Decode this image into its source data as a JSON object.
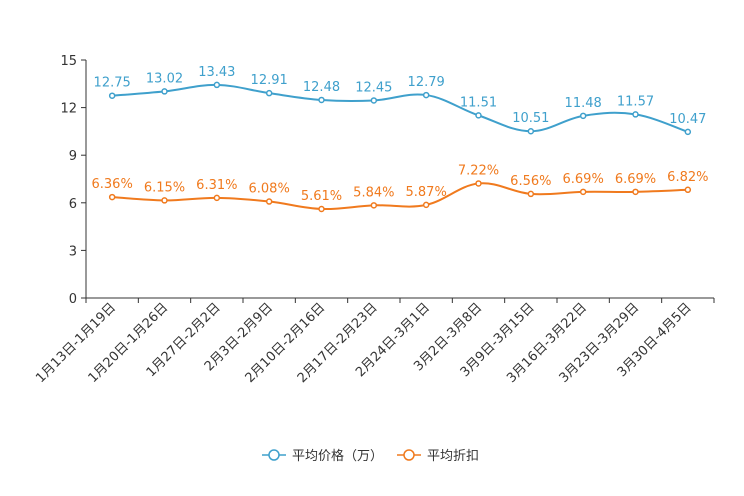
{
  "chart_data": {
    "type": "line",
    "title": "",
    "xlabel": "",
    "ylabel": "",
    "ylim": [
      0,
      15
    ],
    "yticks": [
      0,
      3,
      6,
      9,
      12,
      15
    ],
    "grid": false,
    "legend_position": "bottom-center",
    "categories": [
      "1月13日-1月19日",
      "1月20日-1月26日",
      "1月27日-2月2日",
      "2月3日-2月9日",
      "2月10日-2月16日",
      "2月17日-2月23日",
      "2月24日-3月1日",
      "3月2日-3月8日",
      "3月9日-3月15日",
      "3月16日-3月22日",
      "3月23日-3月29日",
      "3月30日-4月5日"
    ],
    "series": [
      {
        "name": "平均价格（万）",
        "color": "#3fa0cc",
        "values": [
          12.75,
          13.02,
          13.43,
          12.91,
          12.48,
          12.45,
          12.79,
          11.51,
          10.51,
          11.48,
          11.57,
          10.47
        ],
        "labels": [
          "12.75",
          "13.02",
          "13.43",
          "12.91",
          "12.48",
          "12.45",
          "12.79",
          "11.51",
          "10.51",
          "11.48",
          "11.57",
          "10.47"
        ]
      },
      {
        "name": "平均折扣",
        "color": "#f07a1e",
        "values": [
          6.36,
          6.15,
          6.31,
          6.08,
          5.61,
          5.84,
          5.87,
          7.22,
          6.56,
          6.69,
          6.69,
          6.82
        ],
        "labels": [
          "6.36%",
          "6.15%",
          "6.31%",
          "6.08%",
          "5.61%",
          "5.84%",
          "5.87%",
          "7.22%",
          "6.56%",
          "6.69%",
          "6.69%",
          "6.82%"
        ]
      }
    ]
  }
}
